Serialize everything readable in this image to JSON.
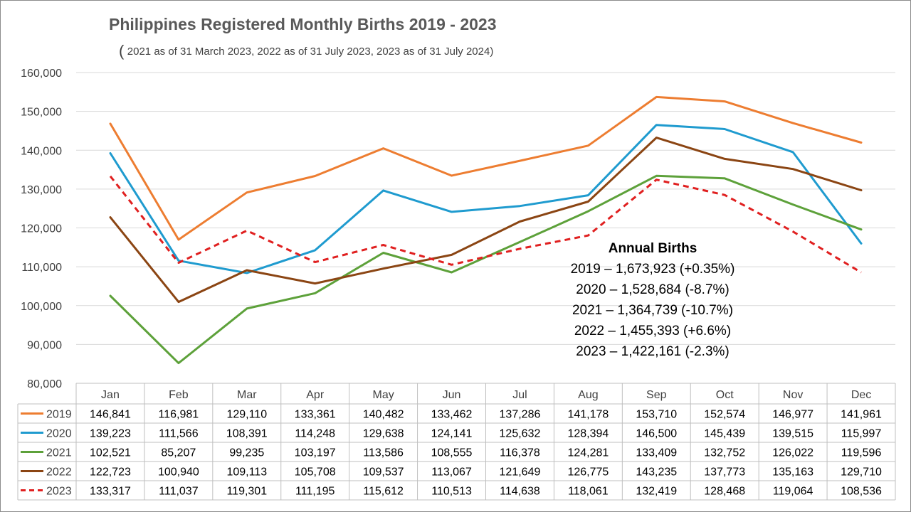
{
  "chart_data": {
    "type": "line",
    "title": "Philippines Registered Monthly Births 2019 - 2023",
    "subtitle_paren": "(",
    "subtitle": "2021 as of 31 March 2023, 2022 as of 31 July 2023, 2023 as of 31 July 2024)",
    "categories": [
      "Jan",
      "Feb",
      "Mar",
      "Apr",
      "May",
      "Jun",
      "Jul",
      "Aug",
      "Sep",
      "Oct",
      "Nov",
      "Dec"
    ],
    "ylim": [
      80000,
      160000
    ],
    "yticks": [
      80000,
      90000,
      100000,
      110000,
      120000,
      130000,
      140000,
      150000,
      160000
    ],
    "ytick_labels": [
      "80,000",
      "90,000",
      "100,000",
      "110,000",
      "120,000",
      "130,000",
      "140,000",
      "150,000",
      "160,000"
    ],
    "grid": true,
    "legend": "data-table",
    "series": [
      {
        "name": "2019",
        "color": "#ED7D31",
        "dashed": false,
        "values": [
          146841,
          116981,
          129110,
          133361,
          140482,
          133462,
          137286,
          141178,
          153710,
          152574,
          146977,
          141961
        ],
        "labels": [
          "146,841",
          "116,981",
          "129,110",
          "133,361",
          "140,482",
          "133,462",
          "137,286",
          "141,178",
          "153,710",
          "152,574",
          "146,977",
          "141,961"
        ]
      },
      {
        "name": "2020",
        "color": "#1F9BCF",
        "dashed": false,
        "values": [
          139223,
          111566,
          108391,
          114248,
          129638,
          124141,
          125632,
          128394,
          146500,
          145439,
          139515,
          115997
        ],
        "labels": [
          "139,223",
          "111,566",
          "108,391",
          "114,248",
          "129,638",
          "124,141",
          "125,632",
          "128,394",
          "146,500",
          "145,439",
          "139,515",
          "115,997"
        ]
      },
      {
        "name": "2021",
        "color": "#5DA13A",
        "dashed": false,
        "values": [
          102521,
          85207,
          99235,
          103197,
          113586,
          108555,
          116378,
          124281,
          133409,
          132752,
          126022,
          119596
        ],
        "labels": [
          "102,521",
          "85,207",
          "99,235",
          "103,197",
          "113,586",
          "108,555",
          "116,378",
          "124,281",
          "133,409",
          "132,752",
          "126,022",
          "119,596"
        ]
      },
      {
        "name": "2022",
        "color": "#8B4513",
        "dashed": false,
        "values": [
          122723,
          100940,
          109113,
          105708,
          109537,
          113067,
          121649,
          126775,
          143235,
          137773,
          135163,
          129710
        ],
        "labels": [
          "122,723",
          "100,940",
          "109,113",
          "105,708",
          "109,537",
          "113,067",
          "121,649",
          "126,775",
          "143,235",
          "137,773",
          "135,163",
          "129,710"
        ]
      },
      {
        "name": "2023",
        "color": "#E02020",
        "dashed": true,
        "values": [
          133317,
          111037,
          119301,
          111195,
          115612,
          110513,
          114638,
          118061,
          132419,
          128468,
          119064,
          108536
        ],
        "labels": [
          "133,317",
          "111,037",
          "119,301",
          "111,195",
          "115,612",
          "110,513",
          "114,638",
          "118,061",
          "132,419",
          "128,468",
          "119,064",
          "108,536"
        ]
      }
    ],
    "annotation": {
      "title": "Annual Births",
      "lines": [
        "2019 – 1,673,923 (+0.35%)",
        "2020 – 1,528,684 (-8.7%)",
        "2021 – 1,364,739 (-10.7%)",
        "2022 – 1,455,393 (+6.6%)",
        "2023 – 1,422,161 (-2.3%)"
      ]
    }
  }
}
